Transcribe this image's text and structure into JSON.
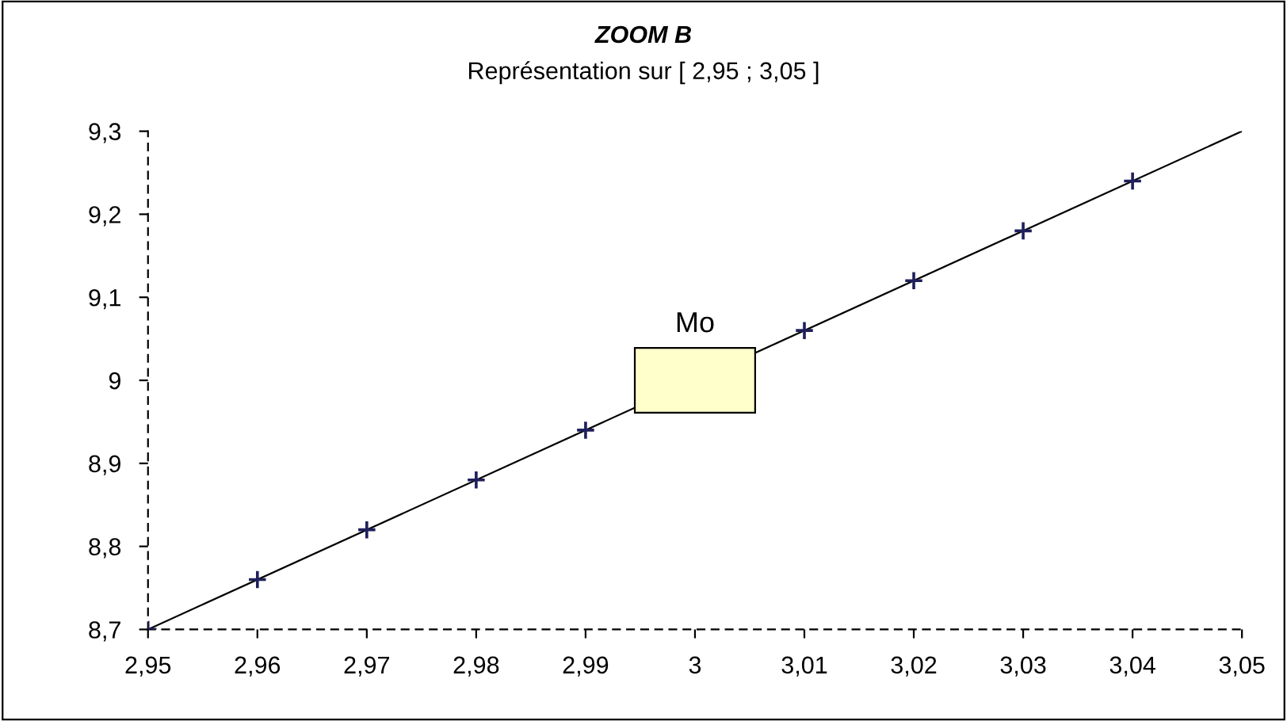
{
  "chart_data": {
    "type": "line",
    "title": "ZOOM B",
    "subtitle": "Représentation sur [ 2,95 ; 3,05 ]",
    "series": [
      {
        "color": "#000000",
        "x": [
          2.95,
          3.05
        ],
        "values": [
          8.7,
          9.3
        ],
        "marker": "none"
      },
      {
        "type": "scatter",
        "color": "#1f1f5c",
        "marker": "cross",
        "x": [
          2.95,
          2.96,
          2.97,
          2.98,
          2.99,
          3.01,
          3.02,
          3.03,
          3.04
        ],
        "values": [
          8.7,
          8.76,
          8.82,
          8.88,
          8.94,
          9.06,
          9.12,
          9.18,
          9.24
        ]
      }
    ],
    "annotations": [
      {
        "text": "Mo",
        "x": 3.0,
        "y": 9.0
      }
    ],
    "xlim": [
      2.95,
      3.05
    ],
    "ylim": [
      8.7,
      9.3
    ],
    "xticks": [
      {
        "value": 2.95,
        "label": "2,95"
      },
      {
        "value": 2.96,
        "label": "2,96"
      },
      {
        "value": 2.97,
        "label": "2,97"
      },
      {
        "value": 2.98,
        "label": "2,98"
      },
      {
        "value": 2.99,
        "label": "2,99"
      },
      {
        "value": 3,
        "label": "3"
      },
      {
        "value": 3.01,
        "label": "3,01"
      },
      {
        "value": 3.02,
        "label": "3,02"
      },
      {
        "value": 3.03,
        "label": "3,03"
      },
      {
        "value": 3.04,
        "label": "3,04"
      },
      {
        "value": 3.05,
        "label": "3,05"
      }
    ],
    "yticks": [
      {
        "value": 8.7,
        "label": "8,7"
      },
      {
        "value": 8.8,
        "label": "8,8"
      },
      {
        "value": 8.9,
        "label": "8,9"
      },
      {
        "value": 9,
        "label": "9"
      },
      {
        "value": 9.1,
        "label": "9,1"
      },
      {
        "value": 9.2,
        "label": "9,2"
      },
      {
        "value": 9.3,
        "label": "9,3"
      }
    ],
    "grid": false,
    "legend": false
  }
}
